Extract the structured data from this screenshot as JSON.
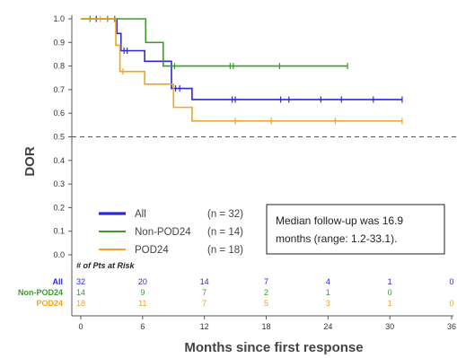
{
  "colors": {
    "all": "#2A2AD0",
    "non_pod24": "#3C9A2A",
    "pod24": "#F5A31A",
    "axis": "#555555",
    "reference": "#555555"
  },
  "chart_data": {
    "type": "line",
    "subtype": "kaplan-meier step curves",
    "title": "",
    "xlabel": "Months since first response",
    "ylabel": "DOR",
    "xlim": [
      0,
      36
    ],
    "ylim": [
      0,
      1.0
    ],
    "x_ticks": [
      0,
      6,
      12,
      18,
      24,
      30,
      36
    ],
    "y_ticks": [
      0.0,
      0.1,
      0.2,
      0.3,
      0.4,
      0.5,
      0.6,
      0.7,
      0.8,
      0.9,
      1.0
    ],
    "x_tick_labels": [
      "0",
      "6",
      "12",
      "18",
      "24",
      "30",
      "36"
    ],
    "y_tick_labels": [
      "0.0",
      "0.1",
      "0.2",
      "0.3",
      "0.4",
      "0.5",
      "0.6",
      "0.7",
      "0.8",
      "0.9",
      "1.0"
    ],
    "reference_line": {
      "y": 0.5,
      "style": "dashed"
    },
    "grid": false,
    "legend_position": "bottom-left",
    "series": [
      {
        "name": "All",
        "n_label": "(n = 32)",
        "color_key": "all",
        "steps": [
          [
            0,
            1.0
          ],
          [
            3.5,
            0.938
          ],
          [
            3.9,
            0.865
          ],
          [
            6.2,
            0.82
          ],
          [
            8.8,
            0.705
          ],
          [
            10.8,
            0.658
          ],
          [
            31.2,
            0.658
          ]
        ],
        "censor_times": [
          1.5,
          3.3,
          4.2,
          4.5,
          9.2,
          9.6,
          14.7,
          15.0,
          19.4,
          20.2,
          23.3,
          25.3,
          28.4,
          31.2
        ]
      },
      {
        "name": "Non-POD24",
        "n_label": "(n = 14)",
        "color_key": "non_pod24",
        "steps": [
          [
            0,
            1.0
          ],
          [
            6.3,
            0.9
          ],
          [
            8.0,
            0.8
          ],
          [
            25.9,
            0.8
          ]
        ],
        "censor_times": [
          0.9,
          2.6,
          3.3,
          9.1,
          14.5,
          14.8,
          19.3,
          25.9
        ]
      },
      {
        "name": "POD24",
        "n_label": "(n = 18)",
        "color_key": "pod24",
        "steps": [
          [
            0,
            1.0
          ],
          [
            3.4,
            0.888
          ],
          [
            3.8,
            0.777
          ],
          [
            6.2,
            0.723
          ],
          [
            9.0,
            0.625
          ],
          [
            10.8,
            0.567
          ],
          [
            31.2,
            0.567
          ]
        ],
        "censor_times": [
          1.9,
          4.1,
          15.0,
          18.5,
          24.7,
          31.2
        ]
      }
    ],
    "risk_table": {
      "header": "# of Pts at Risk",
      "times": [
        0,
        6,
        12,
        18,
        24,
        30,
        36
      ],
      "rows": [
        {
          "label": "All",
          "color_key": "all",
          "values": [
            "32",
            "20",
            "14",
            "7",
            "4",
            "1",
            "0"
          ]
        },
        {
          "label": "Non-POD24",
          "color_key": "non_pod24",
          "values": [
            "14",
            "9",
            "7",
            "2",
            "1",
            "0",
            ""
          ]
        },
        {
          "label": "POD24",
          "color_key": "pod24",
          "values": [
            "18",
            "11",
            "7",
            "5",
            "3",
            "1",
            "0"
          ]
        }
      ]
    },
    "annotation": {
      "lines": [
        "Median follow-up was 16.9",
        "months (range: 1.2-33.1)."
      ]
    }
  }
}
